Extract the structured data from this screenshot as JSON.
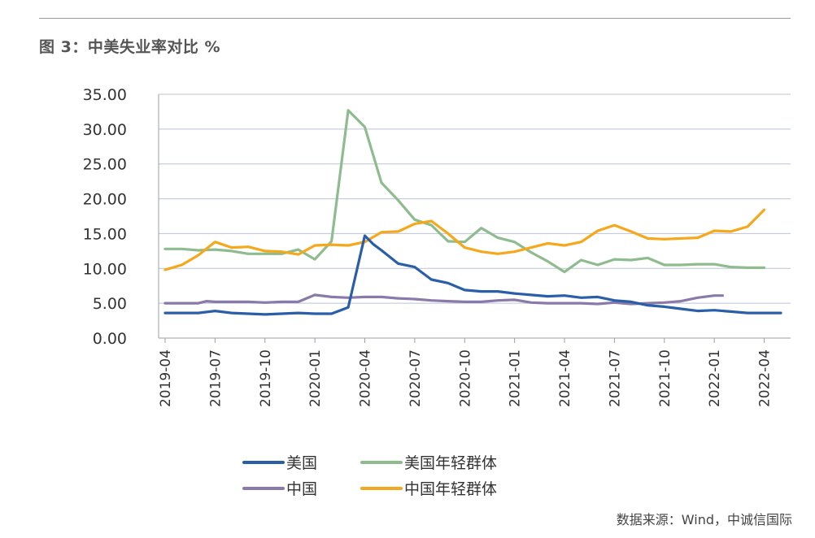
{
  "figure": {
    "title": "图 3：中美失业率对比 %",
    "source": "数据来源：Wind，中诚信国际"
  },
  "colors": {
    "us": "#2a5ea8",
    "us_youth": "#8fbc8f",
    "china": "#8a7aaa",
    "china_youth": "#f5a81c",
    "grid": "#bcc3d6",
    "axis_text": "#333333"
  },
  "chart_data": {
    "type": "line",
    "title": "中美失业率对比 %",
    "xlabel": "",
    "ylabel": "",
    "ylim": [
      0,
      35
    ],
    "yticks": [
      "0.00",
      "5.00",
      "10.00",
      "15.00",
      "20.00",
      "25.00",
      "30.00",
      "35.00"
    ],
    "xticks": [
      "2019-04",
      "2019-07",
      "2019-10",
      "2020-01",
      "2020-04",
      "2020-07",
      "2020-10",
      "2021-01",
      "2021-04",
      "2021-07",
      "2021-10",
      "2022-01",
      "2022-04"
    ],
    "x_months": [
      "2019-04",
      "2019-05",
      "2019-06",
      "2019-07",
      "2019-08",
      "2019-09",
      "2019-10",
      "2019-11",
      "2019-12",
      "2020-01",
      "2020-02",
      "2020-03",
      "2020-04",
      "2020-05",
      "2020-06",
      "2020-07",
      "2020-08",
      "2020-09",
      "2020-10",
      "2020-11",
      "2020-12",
      "2021-01",
      "2021-02",
      "2021-03",
      "2021-04",
      "2021-05",
      "2021-06",
      "2021-07",
      "2021-08",
      "2021-09",
      "2021-10",
      "2021-11",
      "2021-12",
      "2022-01",
      "2022-02",
      "2022-03",
      "2022-04",
      "2022-05"
    ],
    "legend_position": "bottom",
    "series": [
      {
        "name": "美国",
        "key": "us",
        "points": [
          [
            0,
            3.6
          ],
          [
            1,
            3.6
          ],
          [
            2,
            3.6
          ],
          [
            3,
            3.9
          ],
          [
            4,
            3.6
          ],
          [
            5,
            3.5
          ],
          [
            6,
            3.4
          ],
          [
            7,
            3.5
          ],
          [
            8,
            3.6
          ],
          [
            9,
            3.5
          ],
          [
            10,
            3.5
          ],
          [
            11,
            4.4
          ],
          [
            12,
            14.7
          ],
          [
            12.5,
            13.5
          ],
          [
            13,
            12.6
          ],
          [
            14,
            10.7
          ],
          [
            15,
            10.2
          ],
          [
            16,
            8.4
          ],
          [
            17,
            7.9
          ],
          [
            18,
            6.9
          ],
          [
            19,
            6.7
          ],
          [
            20,
            6.7
          ],
          [
            21,
            6.4
          ],
          [
            22,
            6.2
          ],
          [
            23,
            6.0
          ],
          [
            24,
            6.1
          ],
          [
            25,
            5.8
          ],
          [
            26,
            5.9
          ],
          [
            27,
            5.4
          ],
          [
            28,
            5.2
          ],
          [
            29,
            4.7
          ],
          [
            30,
            4.5
          ],
          [
            31,
            4.2
          ],
          [
            32,
            3.9
          ],
          [
            33,
            4.0
          ],
          [
            34,
            3.8
          ],
          [
            35,
            3.6
          ],
          [
            36,
            3.6
          ],
          [
            37,
            3.6
          ]
        ]
      },
      {
        "name": "美国年轻群体",
        "key": "us_youth",
        "points": [
          [
            0,
            12.8
          ],
          [
            1,
            12.8
          ],
          [
            2,
            12.6
          ],
          [
            3,
            12.7
          ],
          [
            4,
            12.5
          ],
          [
            5,
            12.1
          ],
          [
            6,
            12.1
          ],
          [
            7,
            12.1
          ],
          [
            8,
            12.7
          ],
          [
            9,
            11.3
          ],
          [
            10,
            13.9
          ],
          [
            11,
            32.7
          ],
          [
            12,
            30.3
          ],
          [
            13,
            22.3
          ],
          [
            14,
            19.8
          ],
          [
            15,
            17.0
          ],
          [
            16,
            16.2
          ],
          [
            17,
            13.9
          ],
          [
            18,
            13.8
          ],
          [
            19,
            15.8
          ],
          [
            20,
            14.4
          ],
          [
            21,
            13.8
          ],
          [
            22,
            12.3
          ],
          [
            23,
            11.0
          ],
          [
            24,
            9.5
          ],
          [
            25,
            11.2
          ],
          [
            26,
            10.5
          ],
          [
            27,
            11.3
          ],
          [
            28,
            11.2
          ],
          [
            29,
            11.5
          ],
          [
            30,
            10.5
          ],
          [
            31,
            10.5
          ],
          [
            32,
            10.6
          ],
          [
            33,
            10.6
          ],
          [
            34,
            10.2
          ],
          [
            35,
            10.1
          ],
          [
            36,
            10.1
          ]
        ]
      },
      {
        "name": "中国",
        "key": "china",
        "points": [
          [
            0,
            5.0
          ],
          [
            1,
            5.0
          ],
          [
            2,
            5.0
          ],
          [
            2.5,
            5.3
          ],
          [
            3,
            5.2
          ],
          [
            4,
            5.2
          ],
          [
            5,
            5.2
          ],
          [
            6,
            5.1
          ],
          [
            7,
            5.2
          ],
          [
            8,
            5.2
          ],
          [
            9,
            6.2
          ],
          [
            10,
            5.9
          ],
          [
            11,
            5.8
          ],
          [
            12,
            5.9
          ],
          [
            13,
            5.9
          ],
          [
            14,
            5.7
          ],
          [
            15,
            5.6
          ],
          [
            16,
            5.4
          ],
          [
            17,
            5.3
          ],
          [
            18,
            5.2
          ],
          [
            19,
            5.2
          ],
          [
            20,
            5.4
          ],
          [
            21,
            5.5
          ],
          [
            22,
            5.1
          ],
          [
            23,
            5.0
          ],
          [
            24,
            5.0
          ],
          [
            25,
            5.0
          ],
          [
            26,
            4.9
          ],
          [
            27,
            5.1
          ],
          [
            28,
            4.9
          ],
          [
            29,
            5.0
          ],
          [
            30,
            5.1
          ],
          [
            31,
            5.3
          ],
          [
            32,
            5.8
          ],
          [
            33,
            6.1
          ],
          [
            33.5,
            6.1
          ]
        ]
      },
      {
        "name": "中国年轻群体",
        "key": "china_youth",
        "points": [
          [
            0,
            9.8
          ],
          [
            1,
            10.5
          ],
          [
            2,
            11.9
          ],
          [
            3,
            13.8
          ],
          [
            4,
            13.0
          ],
          [
            5,
            13.1
          ],
          [
            6,
            12.5
          ],
          [
            7,
            12.4
          ],
          [
            8,
            12.0
          ],
          [
            9,
            13.3
          ],
          [
            10,
            13.4
          ],
          [
            11,
            13.3
          ],
          [
            12,
            13.8
          ],
          [
            13,
            15.2
          ],
          [
            14,
            15.3
          ],
          [
            15,
            16.4
          ],
          [
            16,
            16.8
          ],
          [
            17,
            15.0
          ],
          [
            18,
            13.0
          ],
          [
            19,
            12.4
          ],
          [
            20,
            12.1
          ],
          [
            21,
            12.4
          ],
          [
            22,
            13.0
          ],
          [
            23,
            13.6
          ],
          [
            24,
            13.3
          ],
          [
            25,
            13.8
          ],
          [
            26,
            15.4
          ],
          [
            27,
            16.2
          ],
          [
            28,
            15.3
          ],
          [
            29,
            14.3
          ],
          [
            30,
            14.2
          ],
          [
            31,
            14.3
          ],
          [
            32,
            14.4
          ],
          [
            33,
            15.4
          ],
          [
            34,
            15.3
          ],
          [
            35,
            16.0
          ],
          [
            36,
            18.4
          ]
        ]
      }
    ],
    "legend": [
      {
        "label": "美国",
        "key": "us"
      },
      {
        "label": "美国年轻群体",
        "key": "us_youth"
      },
      {
        "label": "中国",
        "key": "china"
      },
      {
        "label": "中国年轻群体",
        "key": "china_youth"
      }
    ]
  }
}
